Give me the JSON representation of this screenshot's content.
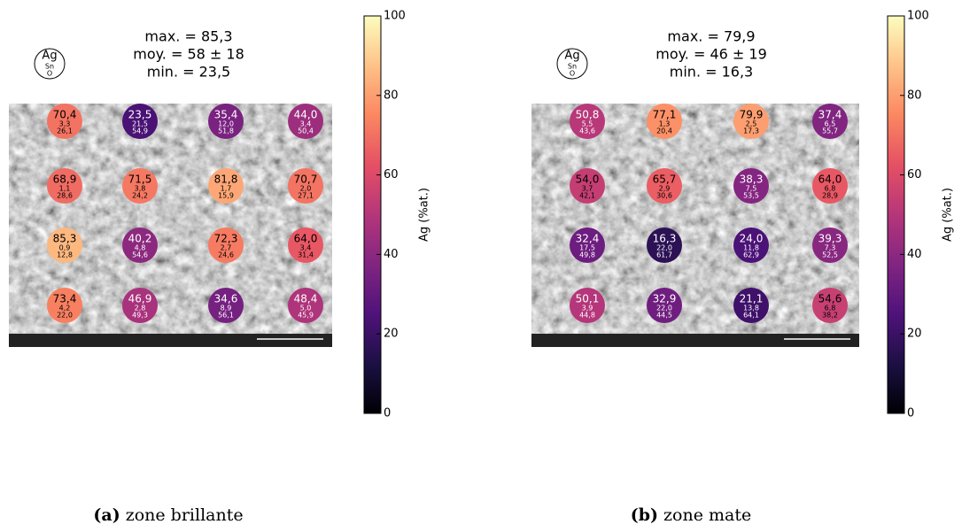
{
  "panels": [
    {
      "caption_label": "(a)",
      "caption_text": "zone brillante",
      "stats": [
        "max. = 85,3",
        "moy. = 58 ± 18",
        "min. = 23,5"
      ],
      "legend": {
        "top": "Ag",
        "middle": "Sn",
        "bottom": "O"
      },
      "colorbar": {
        "label": "Ag (%at.)",
        "lim": [
          0,
          100
        ],
        "ticks": [
          0,
          20,
          40,
          60,
          80,
          100
        ]
      },
      "points": [
        {
          "ag": {
            "value": 70.4,
            "label": "70,4"
          },
          "sn": "3,3",
          "o": "26,1"
        },
        {
          "ag": {
            "value": 23.5,
            "label": "23,5"
          },
          "sn": "21,5",
          "o": "54,9"
        },
        {
          "ag": {
            "value": 35.4,
            "label": "35,4"
          },
          "sn": "12,0",
          "o": "51,8"
        },
        {
          "ag": {
            "value": 44.0,
            "label": "44,0"
          },
          "sn": "3,4",
          "o": "50,4"
        },
        {
          "ag": {
            "value": 68.9,
            "label": "68,9"
          },
          "sn": "1,1",
          "o": "28,6"
        },
        {
          "ag": {
            "value": 71.5,
            "label": "71,5"
          },
          "sn": "3,8",
          "o": "24,2"
        },
        {
          "ag": {
            "value": 81.8,
            "label": "81,8"
          },
          "sn": "1,7",
          "o": "15,9"
        },
        {
          "ag": {
            "value": 70.7,
            "label": "70,7"
          },
          "sn": "2,0",
          "o": "27,1"
        },
        {
          "ag": {
            "value": 85.3,
            "label": "85,3"
          },
          "sn": "0,9",
          "o": "12,8"
        },
        {
          "ag": {
            "value": 40.2,
            "label": "40,2"
          },
          "sn": "4,8",
          "o": "54,6"
        },
        {
          "ag": {
            "value": 72.3,
            "label": "72,3"
          },
          "sn": "2,7",
          "o": "24,6"
        },
        {
          "ag": {
            "value": 64.0,
            "label": "64,0"
          },
          "sn": "3,4",
          "o": "31,4"
        },
        {
          "ag": {
            "value": 73.4,
            "label": "73,4"
          },
          "sn": "4,2",
          "o": "22,0"
        },
        {
          "ag": {
            "value": 46.9,
            "label": "46,9"
          },
          "sn": "2,8",
          "o": "49,3"
        },
        {
          "ag": {
            "value": 34.6,
            "label": "34,6"
          },
          "sn": "8,9",
          "o": "56,1"
        },
        {
          "ag": {
            "value": 48.4,
            "label": "48,4"
          },
          "sn": "5,0",
          "o": "45,9"
        }
      ]
    },
    {
      "caption_label": "(b)",
      "caption_text": "zone mate",
      "stats": [
        "max. = 79,9",
        "moy. = 46 ± 19",
        "min. = 16,3"
      ],
      "legend": {
        "top": "Ag",
        "middle": "Sn",
        "bottom": "O"
      },
      "colorbar": {
        "label": "Ag (%at.)",
        "lim": [
          0,
          100
        ],
        "ticks": [
          0,
          20,
          40,
          60,
          80,
          100
        ]
      },
      "points": [
        {
          "ag": {
            "value": 50.8,
            "label": "50,8"
          },
          "sn": "5,5",
          "o": "43,6"
        },
        {
          "ag": {
            "value": 77.1,
            "label": "77,1"
          },
          "sn": "1,3",
          "o": "20,4"
        },
        {
          "ag": {
            "value": 79.9,
            "label": "79,9"
          },
          "sn": "2,5",
          "o": "17,3"
        },
        {
          "ag": {
            "value": 37.4,
            "label": "37,4"
          },
          "sn": "6,5",
          "o": "55,7"
        },
        {
          "ag": {
            "value": 54.0,
            "label": "54,0"
          },
          "sn": "3,7",
          "o": "42,1"
        },
        {
          "ag": {
            "value": 65.7,
            "label": "65,7"
          },
          "sn": "2,9",
          "o": "30,6"
        },
        {
          "ag": {
            "value": 38.3,
            "label": "38,3"
          },
          "sn": "7,5",
          "o": "53,5"
        },
        {
          "ag": {
            "value": 64.0,
            "label": "64,0"
          },
          "sn": "6,8",
          "o": "28,9"
        },
        {
          "ag": {
            "value": 32.4,
            "label": "32,4"
          },
          "sn": "17,5",
          "o": "49,8"
        },
        {
          "ag": {
            "value": 16.3,
            "label": "16,3"
          },
          "sn": "22,0",
          "o": "61,7"
        },
        {
          "ag": {
            "value": 24.0,
            "label": "24,0"
          },
          "sn": "11,8",
          "o": "62,9"
        },
        {
          "ag": {
            "value": 39.3,
            "label": "39,3"
          },
          "sn": "7,3",
          "o": "52,5"
        },
        {
          "ag": {
            "value": 50.1,
            "label": "50,1"
          },
          "sn": "3,9",
          "o": "44,8"
        },
        {
          "ag": {
            "value": 32.9,
            "label": "32,9"
          },
          "sn": "22,0",
          "o": "44,5"
        },
        {
          "ag": {
            "value": 21.1,
            "label": "21,1"
          },
          "sn": "13,8",
          "o": "64,1"
        },
        {
          "ag": {
            "value": 54.6,
            "label": "54,6"
          },
          "sn": "6,8",
          "o": "38,2"
        }
      ]
    }
  ]
}
